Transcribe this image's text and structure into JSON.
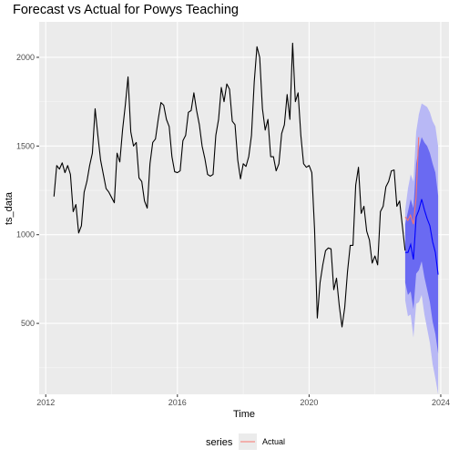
{
  "chart_data": {
    "type": "line",
    "title": "Forecast vs Actual for Powys Teaching",
    "xlabel": "Time",
    "ylabel": "ts_data",
    "xlim": [
      2011.8,
      2024.25
    ],
    "ylim": [
      100,
      2200
    ],
    "x_ticks": [
      2012,
      2016,
      2020,
      2024
    ],
    "y_ticks": [
      500,
      1000,
      1500,
      2000
    ],
    "grid": true,
    "legend": {
      "position": "bottom",
      "title": "series",
      "entries": [
        {
          "name": "Actual",
          "color": "#f8766d"
        }
      ]
    },
    "ts_data": {
      "start": 2012.25,
      "step": 0.0833333,
      "values": [
        1215,
        1390,
        1370,
        1405,
        1350,
        1390,
        1340,
        1130,
        1170,
        1010,
        1050,
        1240,
        1300,
        1390,
        1460,
        1710,
        1560,
        1420,
        1340,
        1260,
        1240,
        1210,
        1180,
        1460,
        1410,
        1590,
        1730,
        1890,
        1580,
        1500,
        1520,
        1320,
        1300,
        1190,
        1150,
        1400,
        1520,
        1540,
        1650,
        1745,
        1730,
        1650,
        1610,
        1440,
        1355,
        1350,
        1360,
        1530,
        1560,
        1690,
        1700,
        1800,
        1700,
        1620,
        1500,
        1430,
        1340,
        1330,
        1340,
        1560,
        1650,
        1830,
        1750,
        1850,
        1820,
        1640,
        1620,
        1420,
        1315,
        1400,
        1385,
        1440,
        1560,
        1860,
        2060,
        2000,
        1710,
        1590,
        1650,
        1440,
        1440,
        1360,
        1400,
        1570,
        1620,
        1790,
        1650,
        2080,
        1750,
        1800,
        1560,
        1400,
        1380,
        1390,
        1350,
        1030,
        530,
        730,
        830,
        910,
        925,
        920,
        690,
        755,
        600,
        480,
        590,
        790,
        940,
        940,
        1280,
        1380,
        1120,
        1160,
        1020,
        970,
        840,
        880,
        830,
        1130,
        1160,
        1270,
        1300,
        1360,
        1365,
        1160,
        1190,
        1050,
        910
      ]
    },
    "forecast": {
      "start": 2022.92,
      "step": 0.0833333,
      "mean": [
        900,
        900,
        945,
        860,
        1100,
        1140,
        1200,
        1140,
        1090,
        1050,
        960,
        900,
        775
      ],
      "lo80": [
        730,
        660,
        680,
        580,
        780,
        800,
        850,
        760,
        690,
        620,
        510,
        440,
        330
      ],
      "hi80": [
        1060,
        1130,
        1200,
        1150,
        1400,
        1490,
        1550,
        1520,
        1500,
        1460,
        1400,
        1350,
        1220
      ],
      "lo95": [
        630,
        540,
        550,
        420,
        610,
        620,
        660,
        550,
        470,
        390,
        270,
        190,
        100
      ],
      "hi95": [
        1140,
        1260,
        1340,
        1300,
        1580,
        1680,
        1740,
        1730,
        1720,
        1690,
        1640,
        1610,
        1500
      ],
      "fill_80": "#6a6af2",
      "fill_95": "#b8b8f5",
      "line_color": "#0000ff"
    },
    "actual": {
      "x": [
        2022.92,
        2023.0,
        2023.08,
        2023.17,
        2023.25,
        2023.33
      ],
      "y": [
        1100,
        1080,
        1110,
        1060,
        1210,
        1550
      ],
      "color": "#f8766d"
    }
  }
}
